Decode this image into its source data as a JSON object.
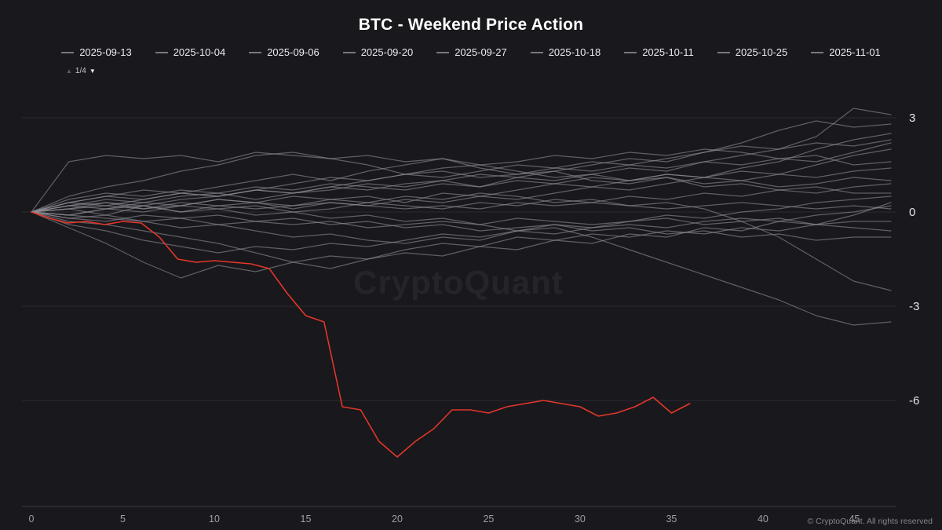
{
  "title": "BTC - Weekend Price Action",
  "legend": {
    "items": [
      "2025-09-13",
      "2025-10-04",
      "2025-09-06",
      "2025-09-20",
      "2025-09-27",
      "2025-10-18",
      "2025-10-11",
      "2025-10-25",
      "2025-11-01"
    ],
    "pager_up": "▲",
    "pager_text": "1/4",
    "pager_down": "▼"
  },
  "watermark": "CryptoQuant",
  "footer": "© CryptoQuant. All rights reserved",
  "chart_data": {
    "type": "line",
    "title": "BTC - Weekend Price Action",
    "xlabel": "",
    "ylabel": "",
    "xlim": [
      0,
      47
    ],
    "ylim": [
      -9.375,
      3.75
    ],
    "x_ticks": [
      0,
      5,
      10,
      15,
      20,
      25,
      30,
      35,
      40,
      45
    ],
    "y_ticks": [
      3,
      0,
      -3,
      -6
    ],
    "grid": "horizontal",
    "legend_position": "top",
    "colors": {
      "gray": "#8f8f9a",
      "red": "#e2362b",
      "background": "#19181c",
      "gridline": "#2b2b31",
      "axis": "#3c3c44",
      "tick_text": "#9d9da5",
      "y_text": "#e6e6ea"
    },
    "red_series": {
      "name": "current-weekend",
      "color": "#e2362b",
      "x_step": 1,
      "values": [
        0,
        -0.2,
        -0.35,
        -0.3,
        -0.4,
        -0.3,
        -0.35,
        -0.8,
        -1.5,
        -1.6,
        -1.55,
        -1.6,
        -1.65,
        -1.8,
        -2.6,
        -3.3,
        -3.5,
        -6.2,
        -6.3,
        -7.3,
        -7.8,
        -7.3,
        -6.9,
        -6.3,
        -6.3,
        -6.4,
        -6.2,
        -6.1,
        -6.0,
        -6.1,
        -6.2,
        -6.5,
        -6.4,
        -6.2,
        -5.9,
        -6.4,
        -6.1
      ]
    },
    "gray_series": [
      {
        "x_max": 47,
        "values": [
          0,
          0.3,
          0.5,
          0.4,
          0.6,
          0.5,
          0.7,
          0.6,
          0.8,
          0.7,
          0.9,
          1.0,
          0.8,
          1.1,
          1.0,
          1.2,
          1.4,
          1.3,
          1.6,
          1.8,
          2.0,
          2.4,
          3.3,
          3.1
        ]
      },
      {
        "x_max": 47,
        "values": [
          0,
          1.6,
          1.8,
          1.7,
          1.8,
          1.6,
          1.9,
          1.8,
          1.7,
          1.5,
          1.2,
          1.3,
          1.1,
          1.2,
          1.4,
          1.3,
          1.5,
          1.4,
          1.6,
          1.5,
          1.7,
          1.6,
          1.9,
          2.2
        ]
      },
      {
        "x_max": 47,
        "values": [
          0,
          0.2,
          0.1,
          0.3,
          0.2,
          0.4,
          0.3,
          0.2,
          0.4,
          0.5,
          0.3,
          0.6,
          0.5,
          0.7,
          0.9,
          0.8,
          1.0,
          1.2,
          1.1,
          1.4,
          1.6,
          2.0,
          2.3,
          2.5
        ]
      },
      {
        "x_max": 47,
        "values": [
          0,
          -0.1,
          0.1,
          0.2,
          0.0,
          0.2,
          0.3,
          0.1,
          0.3,
          0.2,
          0.4,
          0.3,
          0.5,
          0.4,
          0.6,
          0.8,
          0.7,
          0.9,
          1.1,
          1.3,
          1.2,
          1.5,
          1.8,
          2.0
        ]
      },
      {
        "x_max": 47,
        "values": [
          0,
          -0.5,
          -1.0,
          -1.6,
          -2.1,
          -1.7,
          -1.9,
          -1.6,
          -1.8,
          -1.5,
          -1.3,
          -1.4,
          -1.1,
          -1.2,
          -0.9,
          -1.0,
          -0.7,
          -0.8,
          -0.5,
          -0.6,
          -0.3,
          -0.4,
          -0.1,
          0.3
        ]
      },
      {
        "x_max": 47,
        "values": [
          0,
          -0.3,
          -0.4,
          -0.6,
          -0.8,
          -1.0,
          -1.3,
          -1.6,
          -1.4,
          -1.5,
          -1.2,
          -1.0,
          -1.1,
          -0.8,
          -0.9,
          -0.7,
          -0.8,
          -0.6,
          -0.7,
          -0.5,
          -0.6,
          -0.4,
          -0.5,
          -0.6
        ]
      },
      {
        "x_max": 47,
        "values": [
          0,
          0.1,
          -0.1,
          0.2,
          0.0,
          0.1,
          0.2,
          0.0,
          0.1,
          0.3,
          0.2,
          0.1,
          0.3,
          0.2,
          0.4,
          0.3,
          0.5,
          0.4,
          0.6,
          0.5,
          0.7,
          0.6,
          0.8,
          0.9
        ]
      },
      {
        "x_max": 47,
        "values": [
          0,
          -0.2,
          -0.3,
          -0.1,
          -0.2,
          -0.4,
          -0.3,
          -0.2,
          -0.4,
          -0.3,
          -0.5,
          -0.4,
          -0.6,
          -0.5,
          -0.4,
          -0.6,
          -0.5,
          -0.7,
          -0.6,
          -0.8,
          -0.7,
          -0.9,
          -0.8,
          -0.8
        ]
      },
      {
        "x_max": 47,
        "values": [
          0,
          0.2,
          0.3,
          0.1,
          0.2,
          0.4,
          0.3,
          0.5,
          0.4,
          0.3,
          0.5,
          0.4,
          0.6,
          0.5,
          0.3,
          0.4,
          0.2,
          0.3,
          0.1,
          -0.3,
          -0.8,
          -1.5,
          -2.2,
          -2.5
        ]
      },
      {
        "x_max": 47,
        "values": [
          0,
          -0.1,
          0.1,
          0.0,
          0.2,
          0.1,
          -0.1,
          0.0,
          -0.2,
          -0.1,
          -0.3,
          -0.2,
          -0.4,
          -0.6,
          -0.5,
          -0.8,
          -1.2,
          -1.6,
          -2.0,
          -2.4,
          -2.8,
          -3.3,
          -3.6,
          -3.5
        ]
      },
      {
        "x_max": 47,
        "values": [
          0,
          0.4,
          0.6,
          0.5,
          0.7,
          0.6,
          0.8,
          0.7,
          0.9,
          0.8,
          0.7,
          0.9,
          0.8,
          1.0,
          0.9,
          1.1,
          1.0,
          1.2,
          1.1,
          1.0,
          1.2,
          1.1,
          1.3,
          1.4
        ]
      },
      {
        "x_max": 47,
        "values": [
          0,
          0.1,
          0.2,
          0.1,
          0.3,
          0.2,
          0.1,
          0.2,
          0.3,
          0.2,
          0.1,
          0.2,
          0.1,
          0.3,
          0.2,
          0.3,
          0.2,
          0.1,
          0.2,
          0.3,
          0.2,
          0.1,
          0.2,
          0.1
        ]
      },
      {
        "x_max": 47,
        "values": [
          0,
          0.3,
          0.5,
          0.7,
          0.6,
          0.8,
          1.0,
          1.2,
          1.0,
          1.3,
          1.5,
          1.7,
          1.4,
          1.2,
          1.3,
          1.0,
          0.9,
          1.1,
          0.8,
          0.9,
          0.7,
          0.8,
          0.6,
          0.6
        ]
      },
      {
        "x_max": 47,
        "values": [
          0,
          -0.2,
          -0.1,
          -0.3,
          -0.5,
          -0.4,
          -0.6,
          -0.8,
          -0.7,
          -0.9,
          -1.0,
          -0.8,
          -0.9,
          -0.6,
          -0.7,
          -0.5,
          -0.4,
          -0.5,
          -0.3,
          -0.2,
          -0.3,
          -0.1,
          0.0,
          0.2
        ]
      },
      {
        "x_max": 47,
        "values": [
          0,
          0.2,
          0.4,
          0.3,
          0.5,
          0.6,
          0.4,
          0.6,
          0.7,
          0.9,
          0.8,
          1.0,
          1.2,
          1.1,
          1.3,
          1.5,
          1.7,
          1.6,
          1.9,
          2.2,
          2.6,
          2.9,
          2.7,
          2.8
        ]
      },
      {
        "x_max": 47,
        "values": [
          0,
          0.1,
          0.3,
          0.2,
          0.4,
          0.5,
          0.7,
          0.6,
          0.8,
          1.0,
          1.2,
          1.4,
          1.5,
          1.3,
          1.1,
          1.2,
          1.0,
          1.1,
          0.9,
          1.0,
          0.8,
          0.9,
          1.1,
          1.0
        ]
      },
      {
        "x_max": 47,
        "values": [
          0,
          -0.1,
          -0.2,
          -0.3,
          -0.2,
          -0.1,
          -0.3,
          -0.4,
          -0.3,
          -0.5,
          -0.4,
          -0.3,
          -0.4,
          -0.2,
          -0.3,
          -0.4,
          -0.3,
          -0.2,
          -0.4,
          -0.3,
          -0.2,
          -0.4,
          -0.3,
          -0.3
        ]
      },
      {
        "x_max": 47,
        "values": [
          0,
          0.5,
          0.8,
          1.0,
          1.3,
          1.5,
          1.8,
          1.9,
          1.7,
          1.8,
          1.6,
          1.7,
          1.5,
          1.6,
          1.8,
          1.7,
          1.9,
          1.8,
          2.0,
          1.9,
          1.7,
          1.8,
          1.5,
          1.6
        ]
      },
      {
        "x_max": 47,
        "values": [
          0,
          -0.4,
          -0.6,
          -0.9,
          -1.1,
          -1.3,
          -1.1,
          -1.2,
          -1.0,
          -1.1,
          -0.9,
          -0.7,
          -0.8,
          -0.6,
          -0.4,
          -0.5,
          -0.3,
          -0.1,
          -0.2,
          0.0,
          0.1,
          0.3,
          0.4,
          0.5
        ]
      },
      {
        "x_max": 47,
        "values": [
          0,
          0.3,
          0.2,
          0.4,
          0.6,
          0.5,
          0.7,
          0.9,
          1.1,
          1.0,
          1.2,
          1.1,
          1.3,
          1.5,
          1.4,
          1.6,
          1.5,
          1.7,
          1.9,
          2.1,
          2.0,
          2.2,
          2.1,
          2.3
        ]
      }
    ]
  }
}
